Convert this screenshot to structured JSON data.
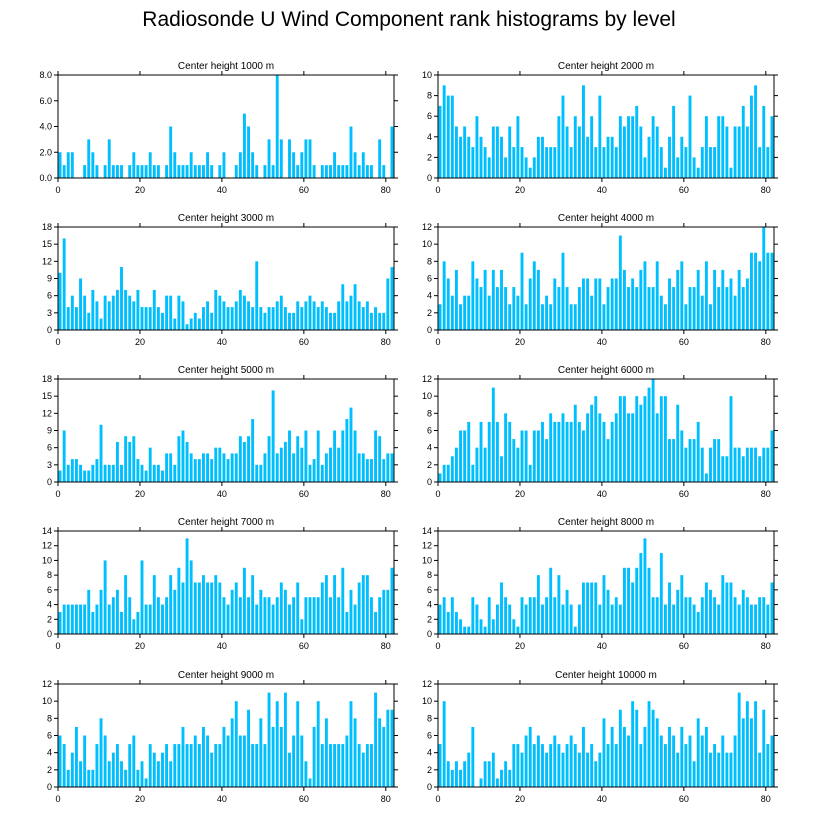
{
  "title": "Radiosonde U Wind Component rank histograms by level",
  "bar_color": "#00bfff",
  "chart_data": [
    {
      "type": "bar",
      "title": "Center height 1000 m",
      "xlim": [
        0,
        82
      ],
      "ylim": [
        0,
        8
      ],
      "yticks": [
        0,
        2,
        4,
        6,
        8
      ],
      "ytick_labels": [
        "0.0",
        "2.0",
        "4.0",
        "6.0",
        "8.0"
      ],
      "xticks": [
        0,
        20,
        40,
        60,
        80
      ],
      "values": [
        2,
        1,
        2,
        2,
        0,
        0,
        1,
        3,
        2,
        1,
        0,
        1,
        3,
        1,
        1,
        1,
        0,
        1,
        2,
        1,
        1,
        1,
        2,
        1,
        1,
        0,
        1,
        4,
        2,
        1,
        1,
        1,
        2,
        1,
        1,
        1,
        2,
        1,
        0,
        1,
        2,
        0,
        0,
        1,
        2,
        5,
        4,
        2,
        1,
        0,
        1,
        3,
        1,
        8,
        3,
        0,
        3,
        2,
        1,
        2,
        3,
        3,
        1,
        0,
        1,
        1,
        1,
        2,
        1,
        1,
        1,
        4,
        2,
        1,
        2,
        1,
        1,
        0,
        3,
        1,
        0,
        4
      ]
    },
    {
      "type": "bar",
      "title": "Center height 2000 m",
      "xlim": [
        0,
        82
      ],
      "ylim": [
        0,
        10
      ],
      "yticks": [
        0,
        2,
        4,
        6,
        8,
        10
      ],
      "ytick_labels": [
        "0",
        "2",
        "4",
        "6",
        "8",
        "10"
      ],
      "xticks": [
        0,
        20,
        40,
        60,
        80
      ],
      "values": [
        7,
        9,
        8,
        8,
        5,
        4,
        5,
        4,
        3,
        6,
        4,
        3,
        2,
        5,
        5,
        4,
        2,
        5,
        3,
        6,
        3,
        2,
        1,
        2,
        4,
        4,
        3,
        3,
        3,
        6,
        8,
        5,
        3,
        6,
        5,
        9,
        4,
        6,
        3,
        8,
        3,
        4,
        4,
        3,
        6,
        5,
        6,
        6,
        7,
        5,
        2,
        4,
        6,
        5,
        3,
        1,
        4,
        7,
        2,
        4,
        3,
        8,
        2,
        1,
        3,
        6,
        3,
        3,
        6,
        6,
        5,
        1,
        5,
        5,
        7,
        5,
        8,
        9,
        3,
        7,
        3,
        6
      ]
    },
    {
      "type": "bar",
      "title": "Center height 3000 m",
      "xlim": [
        0,
        82
      ],
      "ylim": [
        0,
        18
      ],
      "yticks": [
        0,
        3,
        6,
        9,
        12,
        15,
        18
      ],
      "ytick_labels": [
        "0",
        "3",
        "6",
        "9",
        "12",
        "15",
        "18"
      ],
      "xticks": [
        0,
        20,
        40,
        60,
        80
      ],
      "values": [
        10,
        16,
        4,
        6,
        4,
        9,
        6,
        3,
        7,
        5,
        2,
        6,
        5,
        6,
        7,
        11,
        7,
        6,
        5,
        7,
        4,
        4,
        4,
        7,
        4,
        3,
        6,
        6,
        2,
        6,
        5,
        1,
        2,
        3,
        2,
        4,
        5,
        3,
        7,
        6,
        5,
        4,
        4,
        5,
        7,
        6,
        5,
        4,
        12,
        4,
        3,
        4,
        4,
        5,
        6,
        4,
        3,
        3,
        5,
        4,
        5,
        6,
        5,
        4,
        5,
        4,
        3,
        3,
        5,
        8,
        5,
        6,
        8,
        5,
        4,
        5,
        3,
        4,
        3,
        3,
        9,
        11
      ]
    },
    {
      "type": "bar",
      "title": "Center height 4000 m",
      "xlim": [
        0,
        82
      ],
      "ylim": [
        0,
        12
      ],
      "yticks": [
        0,
        2,
        4,
        6,
        8,
        10,
        12
      ],
      "ytick_labels": [
        "0",
        "2",
        "4",
        "6",
        "8",
        "10",
        "12"
      ],
      "xticks": [
        0,
        20,
        40,
        60,
        80
      ],
      "values": [
        3,
        8,
        6,
        4,
        7,
        3,
        4,
        4,
        8,
        6,
        5,
        7,
        4,
        7,
        5,
        7,
        5,
        3,
        5,
        4,
        9,
        3,
        6,
        8,
        7,
        3,
        4,
        3,
        6,
        5,
        9,
        5,
        3,
        3,
        5,
        6,
        6,
        4,
        6,
        6,
        3,
        5,
        6,
        6,
        11,
        7,
        5,
        6,
        5,
        7,
        8,
        5,
        5,
        8,
        4,
        3,
        6,
        5,
        7,
        8,
        3,
        5,
        5,
        7,
        4,
        8,
        3,
        7,
        5,
        7,
        5,
        6,
        4,
        7,
        5,
        6,
        9,
        9,
        8,
        12,
        9,
        9
      ]
    },
    {
      "type": "bar",
      "title": "Center height 5000 m",
      "xlim": [
        0,
        82
      ],
      "ylim": [
        0,
        18
      ],
      "yticks": [
        0,
        3,
        6,
        9,
        12,
        15,
        18
      ],
      "ytick_labels": [
        "0",
        "3",
        "6",
        "9",
        "12",
        "15",
        "18"
      ],
      "xticks": [
        0,
        20,
        40,
        60,
        80
      ],
      "values": [
        2,
        9,
        3,
        4,
        4,
        3,
        2,
        2,
        3,
        4,
        10,
        3,
        3,
        3,
        7,
        3,
        8,
        7,
        8,
        4,
        3,
        2,
        6,
        3,
        3,
        2,
        5,
        5,
        3,
        8,
        9,
        7,
        5,
        4,
        4,
        5,
        5,
        4,
        6,
        6,
        5,
        4,
        5,
        5,
        8,
        7,
        8,
        11,
        3,
        3,
        5,
        8,
        16,
        5,
        6,
        7,
        9,
        5,
        8,
        6,
        9,
        3,
        4,
        9,
        3,
        5,
        6,
        9,
        6,
        9,
        11,
        13,
        9,
        5,
        5,
        4,
        4,
        9,
        8,
        4,
        5,
        5
      ]
    },
    {
      "type": "bar",
      "title": "Center height 6000 m",
      "xlim": [
        0,
        82
      ],
      "ylim": [
        0,
        12
      ],
      "yticks": [
        0,
        2,
        4,
        6,
        8,
        10,
        12
      ],
      "ytick_labels": [
        "0",
        "2",
        "4",
        "6",
        "8",
        "10",
        "12"
      ],
      "xticks": [
        0,
        20,
        40,
        60,
        80
      ],
      "values": [
        1,
        2,
        2,
        3,
        4,
        6,
        6,
        7,
        2,
        4,
        7,
        4,
        7,
        11,
        7,
        3,
        8,
        7,
        5,
        4,
        6,
        6,
        2,
        6,
        6,
        7,
        5,
        8,
        7,
        7,
        8,
        7,
        7,
        9,
        7,
        6,
        8,
        9,
        10,
        8,
        7,
        5,
        7,
        8,
        10,
        10,
        8,
        8,
        10,
        9,
        10,
        11,
        12,
        8,
        10,
        10,
        5,
        5,
        9,
        6,
        4,
        5,
        5,
        7,
        4,
        1,
        4,
        5,
        5,
        3,
        3,
        10,
        4,
        4,
        3,
        4,
        4,
        4,
        3,
        4,
        4,
        6
      ]
    },
    {
      "type": "bar",
      "title": "Center height 7000 m",
      "xlim": [
        0,
        82
      ],
      "ylim": [
        0,
        14
      ],
      "yticks": [
        0,
        2,
        4,
        6,
        8,
        10,
        12,
        14
      ],
      "ytick_labels": [
        "0",
        "2",
        "4",
        "6",
        "8",
        "10",
        "12",
        "14"
      ],
      "xticks": [
        0,
        20,
        40,
        60,
        80
      ],
      "values": [
        3,
        4,
        4,
        4,
        4,
        4,
        4,
        6,
        3,
        4,
        6,
        10,
        4,
        5,
        6,
        3,
        8,
        5,
        2,
        3,
        10,
        4,
        4,
        8,
        5,
        4,
        5,
        8,
        6,
        9,
        7,
        13,
        10,
        7,
        7,
        8,
        7,
        7,
        8,
        7,
        5,
        4,
        6,
        7,
        5,
        9,
        5,
        8,
        4,
        6,
        5,
        5,
        4,
        5,
        7,
        6,
        4,
        5,
        7,
        2,
        5,
        5,
        5,
        5,
        7,
        8,
        5,
        8,
        5,
        9,
        3,
        6,
        4,
        7,
        8,
        8,
        5,
        3,
        5,
        6,
        6,
        9
      ]
    },
    {
      "type": "bar",
      "title": "Center height 8000 m",
      "xlim": [
        0,
        82
      ],
      "ylim": [
        0,
        14
      ],
      "yticks": [
        0,
        2,
        4,
        6,
        8,
        10,
        12,
        14
      ],
      "ytick_labels": [
        "0",
        "2",
        "4",
        "6",
        "8",
        "10",
        "12",
        "14"
      ],
      "xticks": [
        0,
        20,
        40,
        60,
        80
      ],
      "values": [
        4,
        5,
        3,
        5,
        3,
        2,
        1,
        1,
        5,
        4,
        2,
        1,
        5,
        2,
        4,
        7,
        5,
        4,
        2,
        1,
        5,
        4,
        5,
        5,
        8,
        4,
        5,
        9,
        5,
        8,
        4,
        6,
        4,
        1,
        4,
        7,
        7,
        7,
        7,
        4,
        8,
        6,
        4,
        5,
        4,
        9,
        9,
        7,
        9,
        11,
        13,
        9,
        5,
        5,
        11,
        4,
        7,
        4,
        6,
        8,
        5,
        5,
        4,
        3,
        5,
        7,
        6,
        5,
        4,
        8,
        7,
        7,
        5,
        4,
        6,
        5,
        4,
        4,
        5,
        5,
        4,
        7
      ]
    },
    {
      "type": "bar",
      "title": "Center height 9000 m",
      "xlim": [
        0,
        82
      ],
      "ylim": [
        0,
        12
      ],
      "yticks": [
        0,
        2,
        4,
        6,
        8,
        10,
        12
      ],
      "ytick_labels": [
        "0",
        "2",
        "4",
        "6",
        "8",
        "10",
        "12"
      ],
      "xticks": [
        0,
        20,
        40,
        60,
        80
      ],
      "values": [
        6,
        5,
        2,
        4,
        7,
        3,
        6,
        2,
        2,
        5,
        8,
        6,
        3,
        4,
        5,
        3,
        2,
        5,
        6,
        2,
        3,
        1,
        5,
        4,
        3,
        4,
        5,
        3,
        5,
        5,
        7,
        5,
        5,
        6,
        5,
        7,
        6,
        4,
        5,
        5,
        7,
        6,
        8,
        10,
        6,
        6,
        9,
        5,
        5,
        8,
        5,
        11,
        7,
        10,
        7,
        11,
        4,
        6,
        10,
        6,
        3,
        1,
        7,
        10,
        5,
        8,
        5,
        5,
        5,
        5,
        6,
        10,
        8,
        5,
        4,
        5,
        5,
        11,
        8,
        7,
        9,
        9
      ]
    },
    {
      "type": "bar",
      "title": "Center height 10000 m",
      "xlim": [
        0,
        82
      ],
      "ylim": [
        0,
        12
      ],
      "yticks": [
        0,
        2,
        4,
        6,
        8,
        10,
        12
      ],
      "ytick_labels": [
        "0",
        "2",
        "4",
        "6",
        "8",
        "10",
        "12"
      ],
      "xticks": [
        0,
        20,
        40,
        60,
        80
      ],
      "values": [
        5,
        10,
        3,
        2,
        3,
        2,
        3,
        4,
        7,
        0,
        1,
        3,
        3,
        4,
        1,
        2,
        3,
        2,
        5,
        5,
        4,
        6,
        7,
        5,
        6,
        5,
        4,
        5,
        6,
        5,
        4,
        5,
        6,
        5,
        4,
        7,
        4,
        5,
        3,
        4,
        8,
        5,
        7,
        5,
        9,
        7,
        6,
        10,
        9,
        5,
        7,
        10,
        9,
        8,
        6,
        5,
        7,
        6,
        4,
        7,
        5,
        6,
        3,
        8,
        6,
        7,
        4,
        5,
        4,
        6,
        4,
        4,
        6,
        11,
        8,
        10,
        8,
        10,
        4,
        9,
        5,
        6
      ]
    }
  ]
}
